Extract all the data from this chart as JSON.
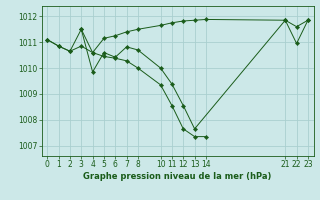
{
  "title": "Graphe pression niveau de la mer (hPa)",
  "bg_color": "#cce8e8",
  "grid_color": "#aacfcf",
  "line_color": "#1a5c1a",
  "marker_color": "#1a5c1a",
  "xlim": [
    -0.5,
    23.5
  ],
  "ylim": [
    1006.6,
    1012.4
  ],
  "xticks": [
    0,
    1,
    2,
    3,
    4,
    5,
    6,
    7,
    8,
    10,
    11,
    12,
    13,
    14,
    21,
    22,
    23
  ],
  "yticks": [
    1007,
    1008,
    1009,
    1010,
    1011,
    1012
  ],
  "series1_x": [
    0,
    1,
    2,
    3,
    4,
    5,
    6,
    7,
    8,
    10,
    11,
    12,
    13,
    14,
    21,
    22,
    23
  ],
  "series1_y": [
    1011.1,
    1010.85,
    1010.65,
    1011.5,
    1010.6,
    1011.15,
    1011.25,
    1011.4,
    1011.5,
    1011.65,
    1011.75,
    1011.82,
    1011.85,
    1011.88,
    1011.85,
    1011.6,
    1011.85
  ],
  "series2_x": [
    0,
    1,
    2,
    3,
    4,
    5,
    6,
    7,
    8,
    10,
    11,
    12,
    13,
    14
  ],
  "series2_y": [
    1011.1,
    1010.85,
    1010.65,
    1010.85,
    1010.6,
    1010.45,
    1010.38,
    1010.28,
    1010.0,
    1009.35,
    1008.55,
    1007.65,
    1007.35,
    1007.35
  ],
  "series3_x": [
    3,
    4,
    5,
    6,
    7,
    8,
    10,
    11,
    12,
    13,
    21,
    22,
    23
  ],
  "series3_y": [
    1011.5,
    1009.85,
    1010.6,
    1010.42,
    1010.82,
    1010.7,
    1010.0,
    1009.38,
    1008.55,
    1007.65,
    1011.85,
    1010.95,
    1011.85
  ]
}
